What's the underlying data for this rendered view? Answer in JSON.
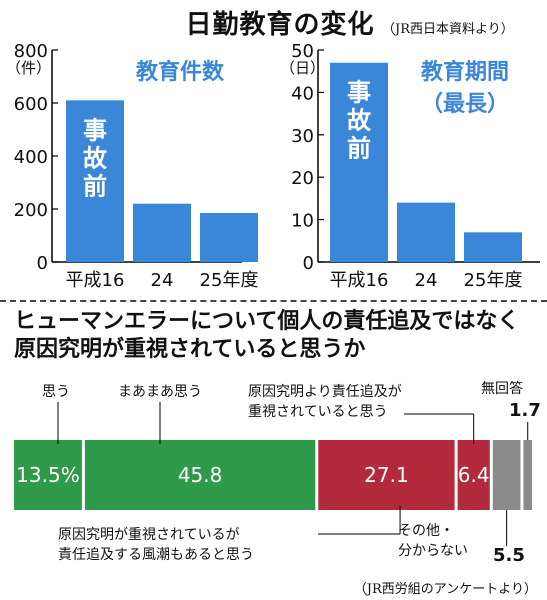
{
  "header": {
    "title": "日勤教育の変化",
    "source": "（JR西日本資料より）"
  },
  "chart_data": [
    {
      "type": "bar",
      "title": "教育件数",
      "unit": "（件）",
      "categories": [
        "平成16",
        "24",
        "25年度"
      ],
      "values": [
        610,
        220,
        185
      ],
      "ylim": [
        0,
        800
      ],
      "yticks": [
        "0",
        "200",
        "400",
        "600",
        "800"
      ],
      "annotation": "事故前",
      "color": "#3a86d8"
    },
    {
      "type": "bar",
      "title": "教育期間",
      "subtitle": "（最長）",
      "unit": "（日）",
      "categories": [
        "平成16",
        "24",
        "25年度"
      ],
      "values": [
        47,
        14,
        7
      ],
      "ylim": [
        0,
        50
      ],
      "yticks": [
        "0",
        "10",
        "20",
        "30",
        "40",
        "50"
      ],
      "annotation": "事故前",
      "color": "#3a86d8"
    },
    {
      "type": "bar",
      "title": "ヒューマンエラーについて個人の責任追及ではなく原因究明が重視されていると思うか",
      "source": "（JR西労組のアンケートより）",
      "series": [
        {
          "name": "思う",
          "value": 13.5,
          "value_label": "13.5%",
          "color": "#2e9a4a"
        },
        {
          "name": "まあまあ思う",
          "value": 45.8,
          "value_label": "45.8",
          "color": "#2e9a4a"
        },
        {
          "name": "原因究明が重視されているが責任追及する風潮もあると思う",
          "value": 27.1,
          "value_label": "27.1",
          "color": "#b22a3c"
        },
        {
          "name": "原因究明より責任追及が重視されていると思う",
          "value": 6.4,
          "value_label": "6.4",
          "color": "#b22a3c"
        },
        {
          "name": "その他・分からない",
          "value": 5.5,
          "value_label": "5.5",
          "color": "#8a8a8a"
        },
        {
          "name": "無回答",
          "value": 1.7,
          "value_label": "1.7",
          "color": "#8a8a8a"
        }
      ]
    }
  ],
  "labels": {
    "left_title": "教育件数",
    "right_title_1": "教育期間",
    "right_title_2": "（最長）",
    "omou": "思う",
    "maamaa": "まあまあ思う",
    "red_small_1": "原因究明より責任追及が",
    "red_small_2": "重視されていると思う",
    "red_big_1": "原因究明が重視されているが",
    "red_big_2": "責任追及する風潮もあると思う",
    "other_1": "その他・",
    "other_2": "分からない",
    "noanswer": "無回答"
  }
}
